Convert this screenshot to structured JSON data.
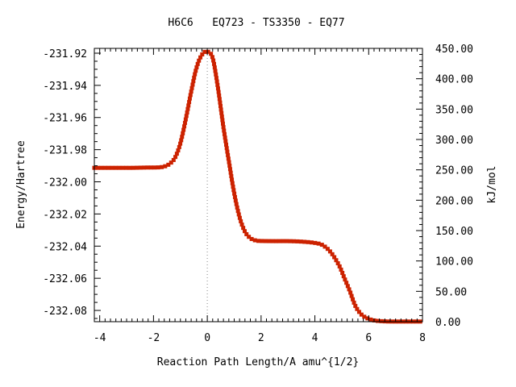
{
  "chart_data": {
    "type": "line",
    "title": "H6C6   EQ723 - TS3350 - EQ77",
    "xlabel": "Reaction Path Length/A amu^{1/2}",
    "ylabel": "Energy/Hartree",
    "y2label": "kJ/mol",
    "xlim": [
      -4.2,
      8.0
    ],
    "ylim": [
      -232.087,
      -231.917
    ],
    "y2lim": [
      0.0,
      450.0
    ],
    "x_ticks": [
      "-4",
      "-2",
      "0",
      "2",
      "4",
      "6",
      "8"
    ],
    "y_ticks": [
      "-231.92",
      "-231.94",
      "-231.96",
      "-231.98",
      "-232.00",
      "-232.02",
      "-232.04",
      "-232.06",
      "-232.08"
    ],
    "y2_ticks": [
      "450.00",
      "400.00",
      "350.00",
      "300.00",
      "250.00",
      "200.00",
      "150.00",
      "100.00",
      "50.00",
      "0.00"
    ],
    "ts_marker_x": 0.0,
    "grid": false,
    "series": [
      {
        "line_color": "#009900",
        "marker_color": "#cc2200",
        "points": [
          [
            -4.2,
            -231.9913
          ],
          [
            -3.8,
            -231.9913
          ],
          [
            -3.4,
            -231.9913
          ],
          [
            -3.0,
            -231.9913
          ],
          [
            -2.8,
            -231.9913
          ],
          [
            -2.5,
            -231.9912
          ],
          [
            -2.2,
            -231.9911
          ],
          [
            -2.0,
            -231.9911
          ],
          [
            -1.8,
            -231.991
          ],
          [
            -1.6,
            -231.9905
          ],
          [
            -1.4,
            -231.9888
          ],
          [
            -1.2,
            -231.985
          ],
          [
            -1.0,
            -231.976
          ],
          [
            -0.8,
            -231.961
          ],
          [
            -0.6,
            -231.944
          ],
          [
            -0.4,
            -231.929
          ],
          [
            -0.2,
            -231.921
          ],
          [
            0.0,
            -231.919
          ],
          [
            0.2,
            -231.923
          ],
          [
            0.4,
            -231.942
          ],
          [
            0.6,
            -231.966
          ],
          [
            0.8,
            -231.987
          ],
          [
            1.0,
            -232.007
          ],
          [
            1.2,
            -232.022
          ],
          [
            1.4,
            -232.031
          ],
          [
            1.6,
            -232.035
          ],
          [
            1.8,
            -232.0365
          ],
          [
            2.0,
            -232.0368
          ],
          [
            2.5,
            -232.0369
          ],
          [
            3.0,
            -232.0369
          ],
          [
            3.5,
            -232.0372
          ],
          [
            4.0,
            -232.038
          ],
          [
            4.3,
            -232.0395
          ],
          [
            4.6,
            -232.044
          ],
          [
            4.9,
            -232.052
          ],
          [
            5.1,
            -232.06
          ],
          [
            5.3,
            -232.068
          ],
          [
            5.5,
            -232.077
          ],
          [
            5.7,
            -232.082
          ],
          [
            5.9,
            -232.0845
          ],
          [
            6.2,
            -232.0862
          ],
          [
            6.6,
            -232.0868
          ],
          [
            7.0,
            -232.0869
          ],
          [
            7.5,
            -232.0869
          ],
          [
            8.0,
            -232.0869
          ]
        ]
      }
    ]
  }
}
